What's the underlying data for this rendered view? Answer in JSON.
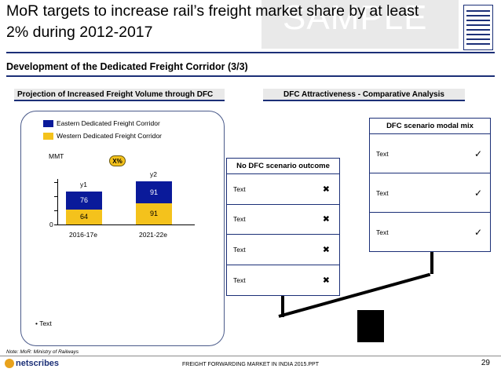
{
  "header": {
    "title_line1": "MoR targets to increase rail’s freight market share by at least",
    "title_line2": "2% during 2012-2017",
    "watermark": "SAMPLE"
  },
  "subtitle": "Development of the Dedicated Freight Corridor (3/3)",
  "left_section": {
    "heading": "Projection of Increased Freight Volume through DFC",
    "bullet": "Text"
  },
  "right_section": {
    "heading": "DFC Attractiveness - Comparative Analysis"
  },
  "chart_data": {
    "type": "bar",
    "stacked": true,
    "unit_label": "MMT",
    "categories": [
      "2016-17e",
      "2021-22e"
    ],
    "top_labels": [
      "y1",
      "y2"
    ],
    "series": [
      {
        "name": "Western Dedicated Freight Corridor",
        "color": "#f4c21c",
        "values": [
          64,
          91
        ]
      },
      {
        "name": "Eastern Dedicated Freight Corridor",
        "color": "#0a1a9a",
        "values": [
          76,
          91
        ]
      }
    ],
    "legend": [
      "Eastern Dedicated Freight Corridor",
      "Western Dedicated Freight Corridor"
    ],
    "y_zero_label": "0",
    "growth_badge": "X%"
  },
  "no_dfc_table": {
    "title": "No DFC scenario outcome",
    "rows": [
      {
        "label": "Text",
        "mark": "✖"
      },
      {
        "label": "Text",
        "mark": "✖"
      },
      {
        "label": "Text",
        "mark": "✖"
      },
      {
        "label": "Text",
        "mark": "✖"
      }
    ]
  },
  "dfc_table": {
    "title": "DFC scenario modal mix",
    "rows": [
      {
        "label": "Text",
        "mark": "✓"
      },
      {
        "label": "Text",
        "mark": "✓"
      },
      {
        "label": "Text",
        "mark": "✓"
      }
    ]
  },
  "footer": {
    "note": "Note: MoR: Ministry of Railways",
    "logo_text": "netscribes",
    "doc_name": "FREIGHT FORWARDING MARKET IN INDIA 2015.PPT",
    "page": "29"
  },
  "colors": {
    "navy": "#1b2f77",
    "eastern": "#0a1a9a",
    "western": "#f4c21c",
    "weight": "#000000"
  }
}
